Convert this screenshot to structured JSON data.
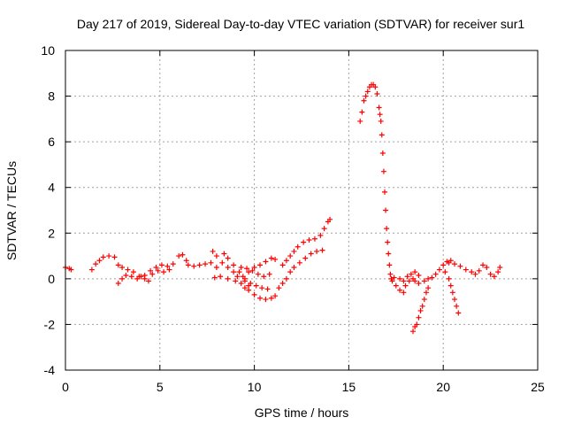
{
  "chart_data": {
    "type": "scatter",
    "title": "Day 217 of 2019, Sidereal Day-to-day VTEC variation (SDTVAR) for receiver sur1",
    "xlabel": "GPS time / hours",
    "ylabel": "SDTVAR / TECUs",
    "xlim": [
      0,
      25
    ],
    "ylim": [
      -4,
      10
    ],
    "xticks": [
      0,
      5,
      10,
      15,
      20,
      25
    ],
    "yticks": [
      -4,
      -2,
      0,
      2,
      4,
      6,
      8,
      10
    ],
    "grid": true,
    "marker": "+",
    "color": "#ff0000",
    "series": [
      {
        "name": "sur1",
        "points": [
          [
            0.0,
            0.5
          ],
          [
            0.2,
            0.45
          ],
          [
            0.3,
            0.4
          ],
          [
            1.4,
            0.4
          ],
          [
            1.6,
            0.65
          ],
          [
            1.8,
            0.8
          ],
          [
            2.0,
            0.95
          ],
          [
            2.3,
            1.0
          ],
          [
            2.6,
            0.95
          ],
          [
            2.8,
            0.6
          ],
          [
            3.0,
            0.5
          ],
          [
            3.3,
            0.4
          ],
          [
            3.6,
            0.3
          ],
          [
            3.9,
            0.1
          ],
          [
            4.2,
            0.0
          ],
          [
            4.4,
            -0.1
          ],
          [
            2.8,
            -0.2
          ],
          [
            3.0,
            0.0
          ],
          [
            3.2,
            0.15
          ],
          [
            3.5,
            0.1
          ],
          [
            3.8,
            0.0
          ],
          [
            4.0,
            0.1
          ],
          [
            4.2,
            0.15
          ],
          [
            4.5,
            0.35
          ],
          [
            4.8,
            0.5
          ],
          [
            5.1,
            0.6
          ],
          [
            5.4,
            0.55
          ],
          [
            5.7,
            0.65
          ],
          [
            6.0,
            1.0
          ],
          [
            6.2,
            1.05
          ],
          [
            6.4,
            0.8
          ],
          [
            4.6,
            0.2
          ],
          [
            4.9,
            0.35
          ],
          [
            5.2,
            0.3
          ],
          [
            5.5,
            0.4
          ],
          [
            6.5,
            0.6
          ],
          [
            6.8,
            0.55
          ],
          [
            7.1,
            0.6
          ],
          [
            7.4,
            0.65
          ],
          [
            7.7,
            0.7
          ],
          [
            8.0,
            0.5
          ],
          [
            7.8,
            1.2
          ],
          [
            8.0,
            1.0
          ],
          [
            8.3,
            0.7
          ],
          [
            8.6,
            0.5
          ],
          [
            8.9,
            0.3
          ],
          [
            9.1,
            0.1
          ],
          [
            8.4,
            1.1
          ],
          [
            8.6,
            0.9
          ],
          [
            8.9,
            0.6
          ],
          [
            9.2,
            0.3
          ],
          [
            9.5,
            0.0
          ],
          [
            9.7,
            -0.3
          ],
          [
            7.9,
            0.05
          ],
          [
            8.2,
            0.1
          ],
          [
            8.6,
            0.0
          ],
          [
            9.0,
            -0.1
          ],
          [
            9.3,
            -0.2
          ],
          [
            9.5,
            -0.4
          ],
          [
            9.7,
            -0.5
          ],
          [
            10.0,
            -0.7
          ],
          [
            10.3,
            -0.85
          ],
          [
            10.6,
            -0.9
          ],
          [
            10.9,
            -0.85
          ],
          [
            11.1,
            -0.75
          ],
          [
            9.4,
            0.1
          ],
          [
            9.7,
            0.3
          ],
          [
            10.0,
            0.5
          ],
          [
            10.3,
            0.6
          ],
          [
            10.6,
            0.75
          ],
          [
            10.9,
            0.9
          ],
          [
            11.1,
            0.85
          ],
          [
            9.5,
            -0.1
          ],
          [
            9.8,
            -0.2
          ],
          [
            10.1,
            -0.3
          ],
          [
            10.4,
            -0.4
          ],
          [
            10.7,
            -0.45
          ],
          [
            9.3,
            0.5
          ],
          [
            9.6,
            0.45
          ],
          [
            9.9,
            0.35
          ],
          [
            10.2,
            0.2
          ],
          [
            10.5,
            0.1
          ],
          [
            10.8,
            0.2
          ],
          [
            11.3,
            -0.4
          ],
          [
            11.5,
            -0.2
          ],
          [
            11.7,
            0.0
          ],
          [
            11.9,
            0.3
          ],
          [
            12.1,
            0.5
          ],
          [
            12.4,
            0.7
          ],
          [
            12.7,
            0.9
          ],
          [
            13.0,
            1.1
          ],
          [
            13.3,
            1.2
          ],
          [
            13.6,
            1.25
          ],
          [
            11.5,
            0.6
          ],
          [
            11.7,
            0.8
          ],
          [
            11.9,
            1.0
          ],
          [
            12.1,
            1.2
          ],
          [
            12.3,
            1.4
          ],
          [
            12.6,
            1.6
          ],
          [
            12.9,
            1.7
          ],
          [
            13.2,
            1.75
          ],
          [
            13.5,
            1.9
          ],
          [
            13.7,
            2.2
          ],
          [
            13.9,
            2.5
          ],
          [
            14.0,
            2.6
          ],
          [
            15.6,
            6.9
          ],
          [
            15.7,
            7.3
          ],
          [
            15.8,
            7.8
          ],
          [
            15.9,
            8.0
          ],
          [
            16.0,
            8.2
          ],
          [
            16.1,
            8.4
          ],
          [
            16.2,
            8.5
          ],
          [
            16.3,
            8.5
          ],
          [
            16.4,
            8.4
          ],
          [
            16.5,
            8.1
          ],
          [
            16.6,
            7.5
          ],
          [
            16.65,
            7.2
          ],
          [
            16.7,
            6.9
          ],
          [
            16.75,
            6.3
          ],
          [
            16.8,
            5.5
          ],
          [
            16.85,
            4.7
          ],
          [
            16.9,
            3.8
          ],
          [
            16.95,
            3.0
          ],
          [
            17.0,
            2.2
          ],
          [
            17.05,
            1.6
          ],
          [
            17.1,
            1.1
          ],
          [
            17.15,
            0.6
          ],
          [
            17.2,
            0.2
          ],
          [
            17.25,
            0.0
          ],
          [
            17.3,
            -0.1
          ],
          [
            17.5,
            -0.3
          ],
          [
            17.7,
            -0.5
          ],
          [
            17.9,
            -0.6
          ],
          [
            18.0,
            -0.3
          ],
          [
            18.2,
            -0.1
          ],
          [
            18.4,
            0.0
          ],
          [
            18.5,
            -0.1
          ],
          [
            18.7,
            -0.2
          ],
          [
            17.4,
            0.05
          ],
          [
            17.7,
            0.0
          ],
          [
            17.9,
            -0.1
          ],
          [
            18.1,
            0.1
          ],
          [
            18.3,
            0.2
          ],
          [
            18.5,
            0.3
          ],
          [
            18.7,
            0.15
          ],
          [
            18.4,
            -2.3
          ],
          [
            18.5,
            -2.1
          ],
          [
            18.6,
            -2.0
          ],
          [
            18.7,
            -1.7
          ],
          [
            18.8,
            -1.4
          ],
          [
            18.9,
            -1.2
          ],
          [
            19.0,
            -0.9
          ],
          [
            19.1,
            -0.6
          ],
          [
            19.2,
            -0.4
          ],
          [
            19.0,
            -0.1
          ],
          [
            19.2,
            0.0
          ],
          [
            19.4,
            0.05
          ],
          [
            19.6,
            0.2
          ],
          [
            19.8,
            0.4
          ],
          [
            20.0,
            0.6
          ],
          [
            20.2,
            0.75
          ],
          [
            20.4,
            0.8
          ],
          [
            20.1,
            0.3
          ],
          [
            20.3,
            0.0
          ],
          [
            20.4,
            -0.3
          ],
          [
            20.5,
            -0.6
          ],
          [
            20.6,
            -0.9
          ],
          [
            20.7,
            -1.2
          ],
          [
            20.8,
            -1.5
          ],
          [
            20.3,
            0.7
          ],
          [
            20.6,
            0.65
          ],
          [
            20.9,
            0.55
          ],
          [
            21.2,
            0.4
          ],
          [
            21.5,
            0.3
          ],
          [
            21.7,
            0.2
          ],
          [
            21.9,
            0.35
          ],
          [
            22.1,
            0.6
          ],
          [
            22.3,
            0.5
          ],
          [
            22.5,
            0.2
          ],
          [
            22.7,
            0.1
          ],
          [
            22.9,
            0.3
          ],
          [
            23.0,
            0.5
          ]
        ]
      }
    ]
  }
}
